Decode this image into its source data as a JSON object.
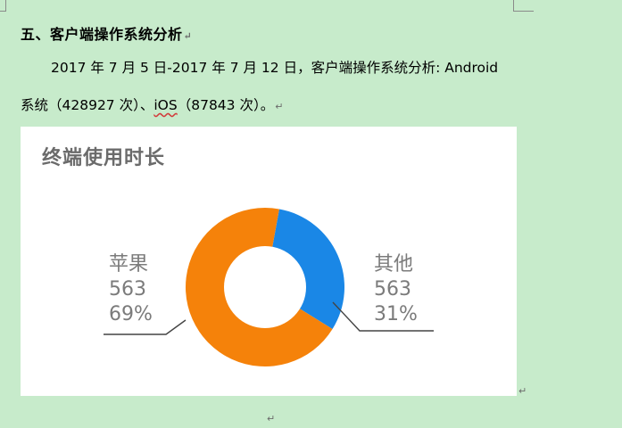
{
  "heading": "五、客户端操作系统分析",
  "paragraph": {
    "line1": "2017 年 7 月 5 日-2017 年 7 月 12 日，客户端操作系统分析: Android",
    "line2_before": "系统（428927 次）、",
    "line2_ios": "iOS",
    "line2_after": "（87843 次）。"
  },
  "paragraph_mark": "↵",
  "chart_data": {
    "type": "pie",
    "donut": true,
    "title": "终端使用时长",
    "slices": [
      {
        "name": "苹果",
        "value_label": "563",
        "percent": 69,
        "percent_label": "69%",
        "color": "#f5820a"
      },
      {
        "name": "其他",
        "value_label": "563",
        "percent": 31,
        "percent_label": "31%",
        "color": "#1a87e6"
      }
    ]
  }
}
